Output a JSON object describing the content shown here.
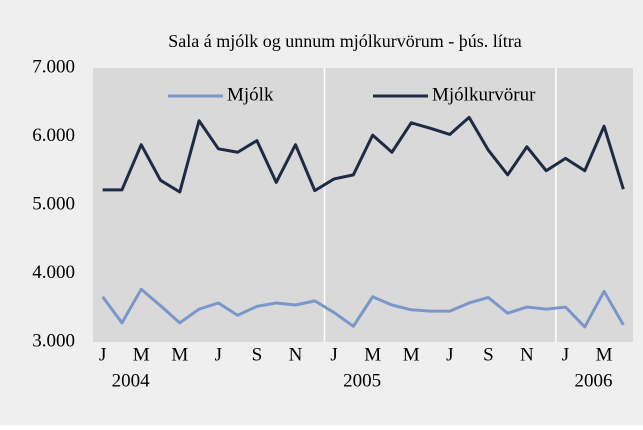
{
  "chart_data": {
    "type": "line",
    "title": "Sala á mjólk og unnum mjólkurvörum - þús. lítra",
    "categories": [
      "J",
      null,
      "M",
      null,
      "M",
      null,
      "J",
      null,
      "S",
      null,
      "N",
      null,
      "J",
      null,
      "M",
      null,
      "M",
      null,
      "J",
      null,
      "S",
      null,
      "N",
      null,
      "J",
      null,
      "M",
      null
    ],
    "years": [
      "2004",
      "2005",
      "2006"
    ],
    "series": [
      {
        "name": "Mjólk",
        "color": "#7b97c9",
        "values": [
          3660,
          3280,
          3770,
          3530,
          3280,
          3480,
          3570,
          3390,
          3520,
          3570,
          3540,
          3600,
          3430,
          3230,
          3660,
          3540,
          3470,
          3450,
          3450,
          3570,
          3650,
          3420,
          3510,
          3480,
          3510,
          3220,
          3740,
          3250
        ]
      },
      {
        "name": "Mjólkurvörur",
        "color": "#1f2b45",
        "values": [
          5220,
          5220,
          5880,
          5360,
          5190,
          6230,
          5820,
          5770,
          5940,
          5330,
          5880,
          5210,
          5380,
          5440,
          6020,
          5770,
          6200,
          6120,
          6030,
          6280,
          5800,
          5440,
          5850,
          5500,
          5680,
          5500,
          6150,
          5230
        ]
      }
    ],
    "ylim": [
      3000,
      7000
    ],
    "yticks": [
      {
        "value": 3000,
        "label": "3.000"
      },
      {
        "value": 4000,
        "label": "4.000"
      },
      {
        "value": 5000,
        "label": "5.000"
      },
      {
        "value": 6000,
        "label": "6.000"
      },
      {
        "value": 7000,
        "label": "7.000"
      }
    ],
    "legend": "top"
  }
}
